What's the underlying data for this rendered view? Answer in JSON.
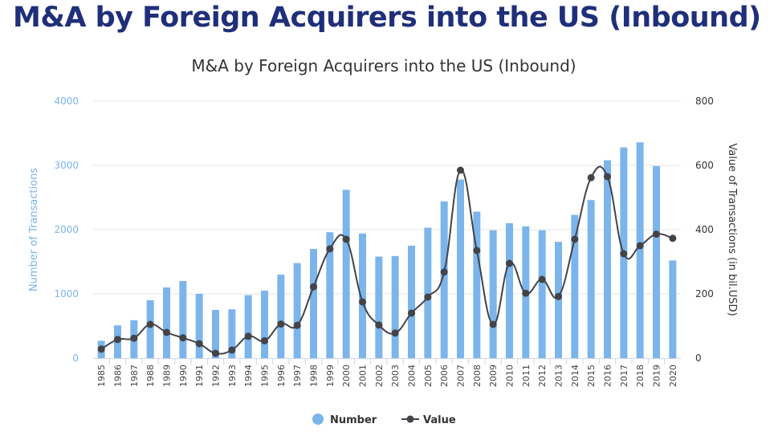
{
  "page": {
    "heading": "M&A by Foreign Acquirers into the US (Inbound)"
  },
  "chart_data": {
    "type": "bar",
    "title": "M&A by Foreign Acquirers into the US (Inbound)",
    "categories": [
      "1985",
      "1986",
      "1987",
      "1988",
      "1989",
      "1990",
      "1991",
      "1992",
      "1993",
      "1994",
      "1995",
      "1996",
      "1997",
      "1998",
      "1999",
      "2000",
      "2001",
      "2002",
      "2003",
      "2004",
      "2005",
      "2006",
      "2007",
      "2008",
      "2009",
      "2010",
      "2011",
      "2012",
      "2013",
      "2014",
      "2015",
      "2016",
      "2017",
      "2018",
      "2019",
      "2020"
    ],
    "series": [
      {
        "name": "Number",
        "type": "bar",
        "axis": "left",
        "color": "#7cb5ec",
        "values": [
          270,
          510,
          590,
          900,
          1100,
          1200,
          1000,
          750,
          760,
          980,
          1050,
          1300,
          1480,
          1700,
          1960,
          2620,
          1940,
          1580,
          1590,
          1750,
          2030,
          2440,
          2780,
          2280,
          1990,
          2100,
          2050,
          1990,
          1810,
          2230,
          2460,
          3080,
          3280,
          3360,
          2990,
          1520
        ]
      },
      {
        "name": "Value",
        "type": "line",
        "axis": "right",
        "color": "#434348",
        "values": [
          28,
          58,
          62,
          105,
          80,
          63,
          45,
          15,
          25,
          68,
          54,
          106,
          102,
          222,
          340,
          370,
          175,
          103,
          78,
          140,
          190,
          268,
          585,
          335,
          105,
          295,
          202,
          245,
          192,
          370,
          562,
          565,
          325,
          350,
          386,
          373
        ]
      }
    ],
    "ylabel_left": "Number of Transactions",
    "ylabel_right": "Value of Transactions (in bil.USD)",
    "ylim_left": [
      0,
      4000
    ],
    "ylim_right": [
      0,
      800
    ],
    "yticks_left": [
      "0",
      "1000",
      "2000",
      "3000",
      "4000"
    ],
    "yticks_right": [
      "0",
      "200",
      "400",
      "600",
      "800"
    ],
    "grid": true,
    "legend_position": "bottom-center"
  }
}
